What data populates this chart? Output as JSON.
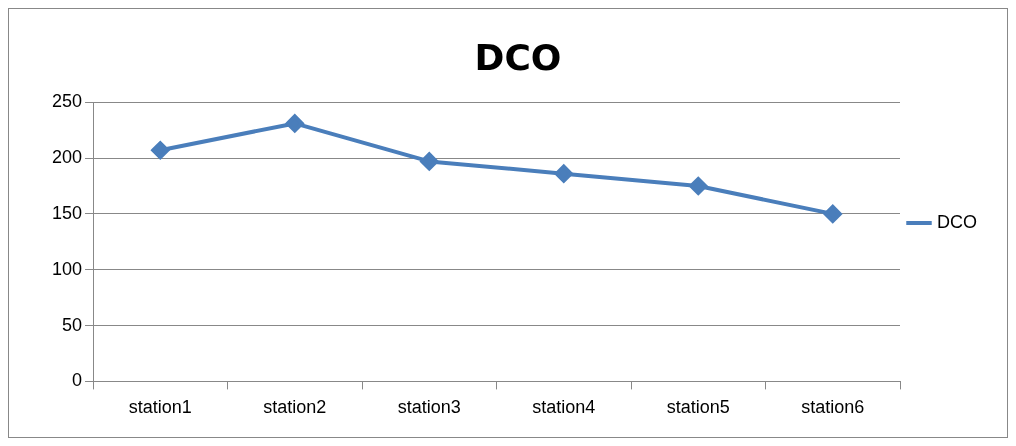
{
  "chart_data": {
    "type": "line",
    "title": "DCO",
    "categories": [
      "station1",
      "station2",
      "station3",
      "station4",
      "station5",
      "station6"
    ],
    "series": [
      {
        "name": "DCO",
        "color": "#4a7ebb",
        "values": [
          207,
          231,
          197,
          186,
          175,
          150
        ]
      }
    ],
    "ylim": [
      0,
      250
    ],
    "yticks": [
      0,
      50,
      100,
      150,
      200,
      250
    ],
    "grid": "y",
    "legend": "right",
    "marker": "diamond",
    "line_style": "solid"
  }
}
